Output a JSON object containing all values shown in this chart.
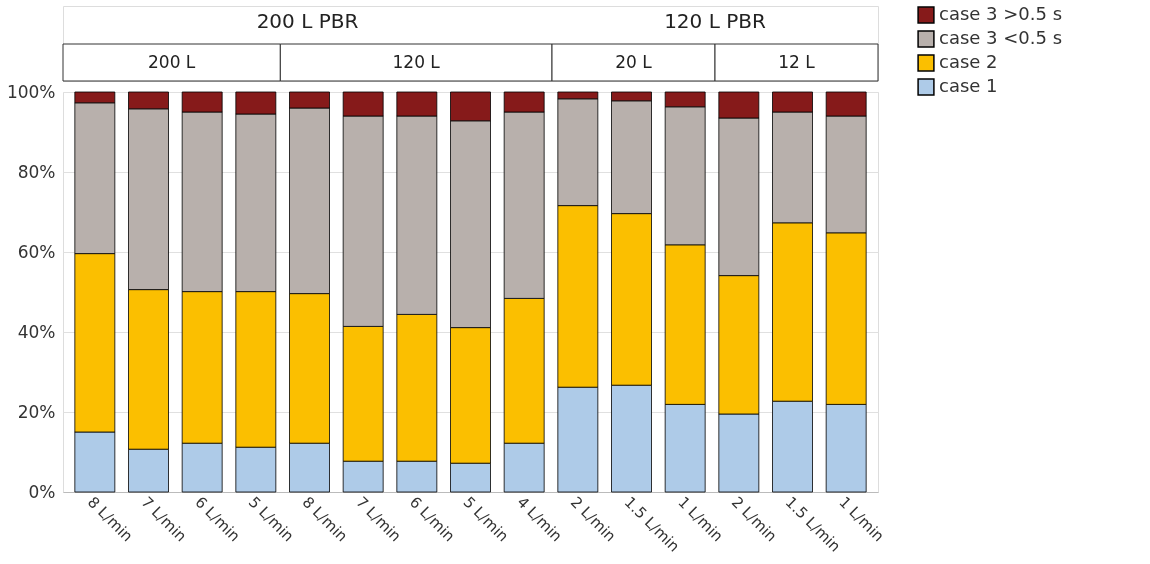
{
  "chart_data": {
    "type": "bar",
    "stacked": true,
    "categories": [
      "8 L/min",
      "7 L/min",
      "6 L/min",
      "5 L/min",
      "8 L/min",
      "7 L/min",
      "6 L/min",
      "5 L/min",
      "4 L/min",
      "2 L/min",
      "1.5 L/min",
      "1 L/min",
      "2 L/min",
      "1.5 L/min",
      "1 L/min"
    ],
    "series": [
      {
        "name": "case 1",
        "color": "#aecbe8",
        "values": [
          15.0,
          10.7,
          12.2,
          11.2,
          12.2,
          7.7,
          7.7,
          7.2,
          12.2,
          26.2,
          26.7,
          21.9,
          19.5,
          22.7,
          21.9
        ]
      },
      {
        "name": "case 2",
        "color": "#fbbf00",
        "values": [
          44.6,
          39.9,
          37.9,
          38.9,
          37.4,
          33.7,
          36.7,
          33.9,
          36.2,
          45.4,
          42.9,
          39.9,
          34.6,
          44.6,
          42.9
        ]
      },
      {
        "name": "case 3 <0.5 s",
        "color": "#b8b0ac",
        "values": [
          37.7,
          45.2,
          44.9,
          44.4,
          46.4,
          52.6,
          49.6,
          51.7,
          46.6,
          26.7,
          28.2,
          34.5,
          39.4,
          27.7,
          29.2
        ]
      },
      {
        "name": "case 3 >0.5 s",
        "color": "#861a1a",
        "values": [
          2.7,
          4.2,
          5.0,
          5.5,
          4.0,
          6.0,
          6.0,
          7.2,
          5.0,
          1.7,
          2.2,
          3.7,
          6.5,
          5.0,
          6.0
        ]
      }
    ],
    "ylim": [
      0,
      100
    ],
    "yticks": [
      {
        "value": 0,
        "label": "0%"
      },
      {
        "value": 20,
        "label": "20%"
      },
      {
        "value": 40,
        "label": "40%"
      },
      {
        "value": 60,
        "label": "60%"
      },
      {
        "value": 80,
        "label": "80%"
      },
      {
        "value": 100,
        "label": "100%"
      }
    ],
    "grid": "y",
    "legend": "top right",
    "annotations": [
      "200 L PBR",
      "120 L PBR",
      "200 L",
      "120 L",
      "20 L",
      "12 L"
    ]
  }
}
